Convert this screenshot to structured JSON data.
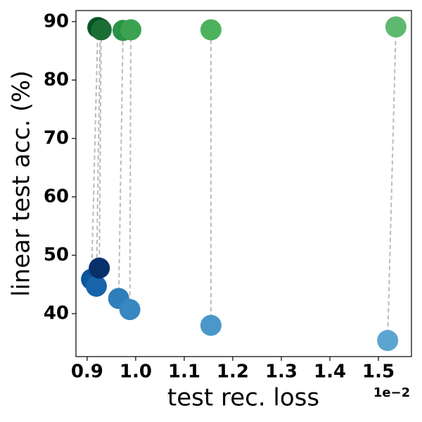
{
  "chart_data": {
    "type": "scatter",
    "xlabel": "test rec. loss",
    "ylabel": "linear test acc. (%)",
    "x_offset_label": "1e−2",
    "xlim": [
      0.877,
      1.568
    ],
    "ylim": [
      32.65,
      91.9
    ],
    "xticks": [
      0.9,
      {
        "value": 1,
        "label": "1.0"
      },
      1.1,
      1.2,
      1.3,
      1.4,
      1.5
    ],
    "yticks": [
      40,
      50,
      60,
      70,
      80,
      90
    ],
    "connector_color": "#bbbbbb",
    "series": [
      {
        "x": [
          0.909,
          0.919,
          0.925,
          0.965,
          0.988,
          1.155,
          1.519
        ],
        "values": [
          45.9,
          44.7,
          47.8,
          42.6,
          40.7,
          38.0,
          35.4
        ],
        "colors": [
          "#0b559f",
          "#1764ab",
          "#08306b",
          "#2f7ebc",
          "#3787c0",
          "#4a98c9",
          "#5da5d1"
        ]
      },
      {
        "x": [
          0.922,
          0.927,
          0.929,
          0.974,
          0.99,
          1.155,
          1.536
        ],
        "values": [
          89.0,
          88.8,
          88.6,
          88.5,
          88.6,
          88.6,
          89.1
        ],
        "colors": [
          "#0b5a26",
          "#00441b",
          "#1a6d33",
          "#2a9246",
          "#3aa251",
          "#4db25e",
          "#5fb870"
        ]
      }
    ]
  }
}
